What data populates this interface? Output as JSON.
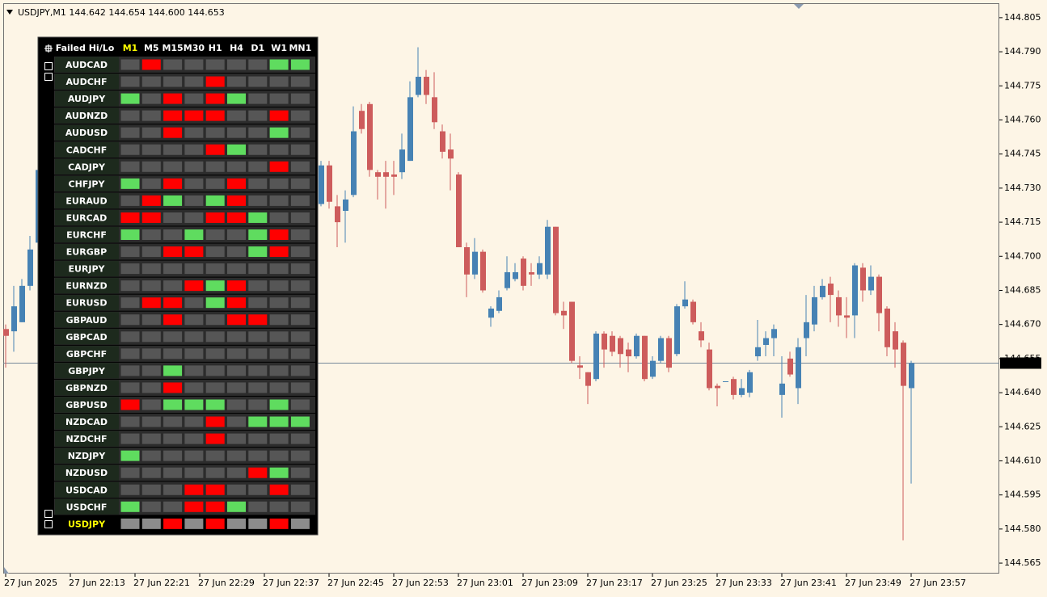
{
  "chart_data": {
    "type": "candlestick",
    "title": "USDJPY,M1  144.642 144.654 144.600 144.653",
    "categories": [
      "22:05",
      "22:06",
      "22:07",
      "22:08",
      "22:09",
      "22:10",
      "22:11",
      "22:12",
      "22:13",
      "22:14",
      "22:15",
      "22:16",
      "22:17",
      "22:18",
      "22:19",
      "22:20",
      "22:21",
      "22:22",
      "22:23",
      "22:24",
      "22:25",
      "22:26",
      "22:27",
      "22:28",
      "22:29",
      "22:30",
      "22:31",
      "22:32",
      "22:33",
      "22:34",
      "22:35",
      "22:36",
      "22:37",
      "22:38",
      "22:39",
      "22:40",
      "22:41",
      "22:42",
      "22:43",
      "22:44",
      "22:45",
      "22:46",
      "22:47",
      "22:48",
      "22:49",
      "22:50",
      "22:51",
      "22:52",
      "22:53",
      "22:54",
      "22:55",
      "22:56",
      "22:57",
      "22:58",
      "22:59",
      "23:00",
      "23:01",
      "23:02",
      "23:03",
      "23:04",
      "23:05",
      "23:06",
      "23:07",
      "23:08",
      "23:09",
      "23:10",
      "23:11",
      "23:12",
      "23:13",
      "23:14",
      "23:15",
      "23:16",
      "23:17",
      "23:18",
      "23:19",
      "23:20",
      "23:21",
      "23:22",
      "23:23",
      "23:24",
      "23:25",
      "23:26",
      "23:27",
      "23:28",
      "23:29",
      "23:30",
      "23:31",
      "23:32",
      "23:33",
      "23:34",
      "23:35",
      "23:36",
      "23:37",
      "23:38",
      "23:39",
      "23:40",
      "23:41",
      "23:42",
      "23:43",
      "23:44",
      "23:45",
      "23:46",
      "23:47",
      "23:48",
      "23:49",
      "23:50",
      "23:51",
      "23:52",
      "23:53",
      "23:54",
      "23:55",
      "23:56",
      "23:57"
    ],
    "open": [
      144.668,
      144.667,
      144.671,
      144.687,
      144.706,
      null,
      null,
      null,
      null,
      null,
      null,
      null,
      null,
      null,
      null,
      null,
      null,
      null,
      null,
      null,
      null,
      null,
      null,
      null,
      null,
      null,
      null,
      null,
      null,
      null,
      null,
      null,
      null,
      null,
      null,
      null,
      null,
      null,
      null,
      144.723,
      144.74,
      144.722,
      144.72,
      144.727,
      144.764,
      144.767,
      144.737,
      144.737,
      144.736,
      144.737,
      144.742,
      144.771,
      144.779,
      144.77,
      144.755,
      144.747,
      144.736,
      144.704,
      144.692,
      144.702,
      144.673,
      144.676,
      144.686,
      144.69,
      144.699,
      144.693,
      144.692,
      144.692,
      144.713,
      144.676,
      144.68,
      144.652,
      144.649,
      144.646,
      144.666,
      144.665,
      144.664,
      144.659,
      144.656,
      144.665,
      144.647,
      144.654,
      144.664,
      144.657,
      144.678,
      144.68,
      144.667,
      144.659,
      144.643,
      144.645,
      144.646,
      144.639,
      144.64,
      144.656,
      144.661,
      144.664,
      144.639,
      144.655,
      144.642,
      144.664,
      144.67,
      144.682,
      144.688,
      144.682,
      144.674,
      144.674,
      144.695,
      144.685,
      144.691,
      144.677,
      144.667,
      144.662,
      144.642
    ],
    "high": [
      144.67,
      144.687,
      144.69,
      144.709,
      144.74,
      null,
      null,
      null,
      null,
      null,
      null,
      null,
      null,
      null,
      null,
      null,
      null,
      null,
      null,
      null,
      null,
      null,
      null,
      null,
      null,
      null,
      null,
      null,
      null,
      null,
      null,
      null,
      null,
      null,
      null,
      null,
      null,
      null,
      null,
      144.742,
      144.742,
      144.727,
      144.729,
      144.766,
      144.767,
      144.768,
      144.738,
      144.742,
      144.742,
      144.754,
      144.777,
      144.792,
      144.782,
      144.781,
      144.758,
      144.754,
      144.737,
      144.706,
      144.708,
      144.703,
      144.678,
      144.685,
      144.7,
      144.697,
      144.7,
      144.697,
      144.7,
      144.716,
      144.713,
      144.68,
      144.68,
      144.656,
      144.649,
      144.667,
      144.667,
      144.667,
      144.665,
      144.662,
      144.666,
      144.665,
      144.656,
      144.665,
      144.665,
      144.679,
      144.689,
      144.681,
      144.671,
      144.662,
      144.644,
      144.645,
      144.647,
      144.646,
      144.65,
      144.672,
      144.667,
      144.67,
      144.656,
      144.658,
      144.664,
      144.683,
      144.687,
      144.69,
      144.691,
      144.685,
      144.682,
      144.697,
      144.697,
      144.696,
      144.692,
      144.678,
      144.671,
      144.663,
      144.654
    ],
    "low": [
      144.651,
      144.658,
      144.671,
      144.685,
      144.704,
      null,
      null,
      null,
      null,
      null,
      null,
      null,
      null,
      null,
      null,
      null,
      null,
      null,
      null,
      null,
      null,
      null,
      null,
      null,
      null,
      null,
      null,
      null,
      null,
      null,
      null,
      null,
      null,
      null,
      null,
      null,
      null,
      null,
      null,
      144.722,
      144.721,
      144.704,
      144.706,
      144.726,
      144.754,
      144.735,
      144.725,
      144.721,
      144.727,
      144.734,
      144.742,
      144.77,
      144.767,
      144.756,
      144.743,
      144.729,
      144.704,
      144.682,
      144.69,
      144.684,
      144.669,
      144.675,
      144.685,
      144.689,
      144.685,
      144.687,
      144.69,
      144.69,
      144.674,
      144.668,
      144.653,
      144.646,
      144.635,
      144.645,
      144.651,
      144.656,
      144.651,
      144.649,
      144.655,
      144.645,
      144.646,
      144.653,
      144.649,
      144.656,
      144.677,
      144.67,
      144.66,
      144.641,
      144.634,
      144.645,
      144.637,
      144.638,
      144.638,
      144.654,
      144.656,
      144.656,
      144.629,
      144.647,
      144.635,
      144.656,
      144.667,
      144.681,
      144.671,
      144.669,
      144.664,
      144.664,
      144.68,
      144.683,
      144.667,
      144.656,
      144.651,
      144.575,
      144.6
    ],
    "close": [
      144.665,
      144.678,
      144.687,
      144.703,
      144.738,
      null,
      null,
      null,
      null,
      null,
      null,
      null,
      null,
      null,
      null,
      null,
      null,
      null,
      null,
      null,
      null,
      null,
      null,
      null,
      null,
      null,
      null,
      null,
      null,
      null,
      null,
      null,
      null,
      null,
      null,
      null,
      null,
      null,
      null,
      144.74,
      144.724,
      144.715,
      144.725,
      144.755,
      144.756,
      144.738,
      144.735,
      144.735,
      144.735,
      144.747,
      144.77,
      144.779,
      144.771,
      144.759,
      144.746,
      144.743,
      144.704,
      144.692,
      144.702,
      144.685,
      144.677,
      144.682,
      144.693,
      144.693,
      144.687,
      144.692,
      144.697,
      144.713,
      144.675,
      144.674,
      144.654,
      144.651,
      144.643,
      144.666,
      144.659,
      144.658,
      144.657,
      144.656,
      144.665,
      144.646,
      144.654,
      144.664,
      144.651,
      144.678,
      144.681,
      144.671,
      144.663,
      144.642,
      144.642,
      144.645,
      144.639,
      144.642,
      144.649,
      144.66,
      144.664,
      144.668,
      144.644,
      144.648,
      144.66,
      144.671,
      144.682,
      144.687,
      144.683,
      144.674,
      144.673,
      144.696,
      144.685,
      144.691,
      144.675,
      144.66,
      144.659,
      144.643,
      144.653
    ],
    "up_color": "#4682b4",
    "down_color": "#cd5c5c",
    "current_price": 144.653,
    "ylim": [
      144.5604,
      144.811
    ],
    "yticks": [
      144.805,
      {
        "value": 144.79,
        "label": "144.790"
      },
      144.775,
      {
        "value": 144.76,
        "label": "144.760"
      },
      144.745,
      {
        "value": 144.73,
        "label": "144.730"
      },
      144.715,
      {
        "value": 144.7,
        "label": "144.700"
      },
      144.685,
      {
        "value": 144.67,
        "label": "144.670"
      },
      144.655,
      {
        "value": 144.64,
        "label": "144.640"
      },
      144.625,
      {
        "value": 144.61,
        "label": "144.610"
      },
      144.595,
      {
        "value": 144.58,
        "label": "144.580"
      },
      144.565
    ],
    "xticks": [
      {
        "value": "22:05",
        "label": "27 Jun 2025"
      },
      {
        "value": "22:13",
        "label": "27 Jun 22:13"
      },
      {
        "value": "22:21",
        "label": "27 Jun 22:21"
      },
      {
        "value": "22:29",
        "label": "27 Jun 22:29"
      },
      {
        "value": "22:37",
        "label": "27 Jun 22:37"
      },
      {
        "value": "22:45",
        "label": "27 Jun 22:45"
      },
      {
        "value": "22:53",
        "label": "27 Jun 22:53"
      },
      {
        "value": "23:01",
        "label": "27 Jun 23:01"
      },
      {
        "value": "23:09",
        "label": "27 Jun 23:09"
      },
      {
        "value": "23:17",
        "label": "27 Jun 23:17"
      },
      {
        "value": "23:25",
        "label": "27 Jun 23:25"
      },
      {
        "value": "23:33",
        "label": "27 Jun 23:33"
      },
      {
        "value": "23:41",
        "label": "27 Jun 23:41"
      },
      {
        "value": "23:49",
        "label": "27 Jun 23:49"
      },
      {
        "value": "23:57",
        "label": "27 Jun 23:57"
      }
    ],
    "grid": false
  },
  "panel": {
    "title": "Failed Hi/Lo",
    "palette": {
      "n": "#565656",
      "r": "#ff0000",
      "g": "#5fdc5f",
      "l": "#8c8c8c"
    },
    "columns": [
      {
        "label": "M1",
        "color": "#ffff00"
      },
      {
        "label": "M5",
        "color": "#ffffff"
      },
      {
        "label": "M15",
        "color": "#ffffff"
      },
      {
        "label": "M30",
        "color": "#ffffff"
      },
      {
        "label": "H1",
        "color": "#ffffff"
      },
      {
        "label": "H4",
        "color": "#ffffff"
      },
      {
        "label": "D1",
        "color": "#ffffff"
      },
      {
        "label": "W1",
        "color": "#ffffff"
      },
      {
        "label": "MN1",
        "color": "#ffffff"
      }
    ],
    "rows": [
      {
        "label": "AUDCAD",
        "color": "#ffffff",
        "cells": "nrnnnnngg"
      },
      {
        "label": "AUDCHF",
        "color": "#ffffff",
        "cells": "nnnnrnnnn"
      },
      {
        "label": "AUDJPY",
        "color": "#ffffff",
        "cells": "gnrnrgnnn"
      },
      {
        "label": "AUDNZD",
        "color": "#ffffff",
        "cells": "nnrrrnnrn"
      },
      {
        "label": "AUDUSD",
        "color": "#ffffff",
        "cells": "nnrnnnngn"
      },
      {
        "label": "CADCHF",
        "color": "#ffffff",
        "cells": "nnnnrgnnn"
      },
      {
        "label": "CADJPY",
        "color": "#ffffff",
        "cells": "nnnnnnnrn"
      },
      {
        "label": "CHFJPY",
        "color": "#ffffff",
        "cells": "gnrnnrnnn"
      },
      {
        "label": "EURAUD",
        "color": "#ffffff",
        "cells": "nrgngrnnn"
      },
      {
        "label": "EURCAD",
        "color": "#ffffff",
        "cells": "rrnnrrgnn"
      },
      {
        "label": "EURCHF",
        "color": "#ffffff",
        "cells": "gnngnngrn"
      },
      {
        "label": "EURGBP",
        "color": "#ffffff",
        "cells": "nnrrnngrn"
      },
      {
        "label": "EURJPY",
        "color": "#ffffff",
        "cells": "nnnnnnnnn"
      },
      {
        "label": "EURNZD",
        "color": "#ffffff",
        "cells": "nnnrgrnnn"
      },
      {
        "label": "EURUSD",
        "color": "#ffffff",
        "cells": "nrrngrnnn"
      },
      {
        "label": "GBPAUD",
        "color": "#ffffff",
        "cells": "nnrnnrrnn"
      },
      {
        "label": "GBPCAD",
        "color": "#ffffff",
        "cells": "nnnnnnnnn"
      },
      {
        "label": "GBPCHF",
        "color": "#ffffff",
        "cells": "nnnnnnnnn"
      },
      {
        "label": "GBPJPY",
        "color": "#ffffff",
        "cells": "nngnnnnnn"
      },
      {
        "label": "GBPNZD",
        "color": "#ffffff",
        "cells": "nnrnnnnnn"
      },
      {
        "label": "GBPUSD",
        "color": "#ffffff",
        "cells": "rngggnngn"
      },
      {
        "label": "NZDCAD",
        "color": "#ffffff",
        "cells": "nnnnrnggg"
      },
      {
        "label": "NZDCHF",
        "color": "#ffffff",
        "cells": "nnnnrnnnn"
      },
      {
        "label": "NZDJPY",
        "color": "#ffffff",
        "cells": "gnnnnnnnn"
      },
      {
        "label": "NZDUSD",
        "color": "#ffffff",
        "cells": "nnnnnnrgn"
      },
      {
        "label": "USDCAD",
        "color": "#ffffff",
        "cells": "nnnrrnnrn"
      },
      {
        "label": "USDCHF",
        "color": "#ffffff",
        "cells": "gnnrrgnnn"
      },
      {
        "label": "USDJPY",
        "color": "#ffff00",
        "cells": "llrlrllrl"
      }
    ]
  }
}
